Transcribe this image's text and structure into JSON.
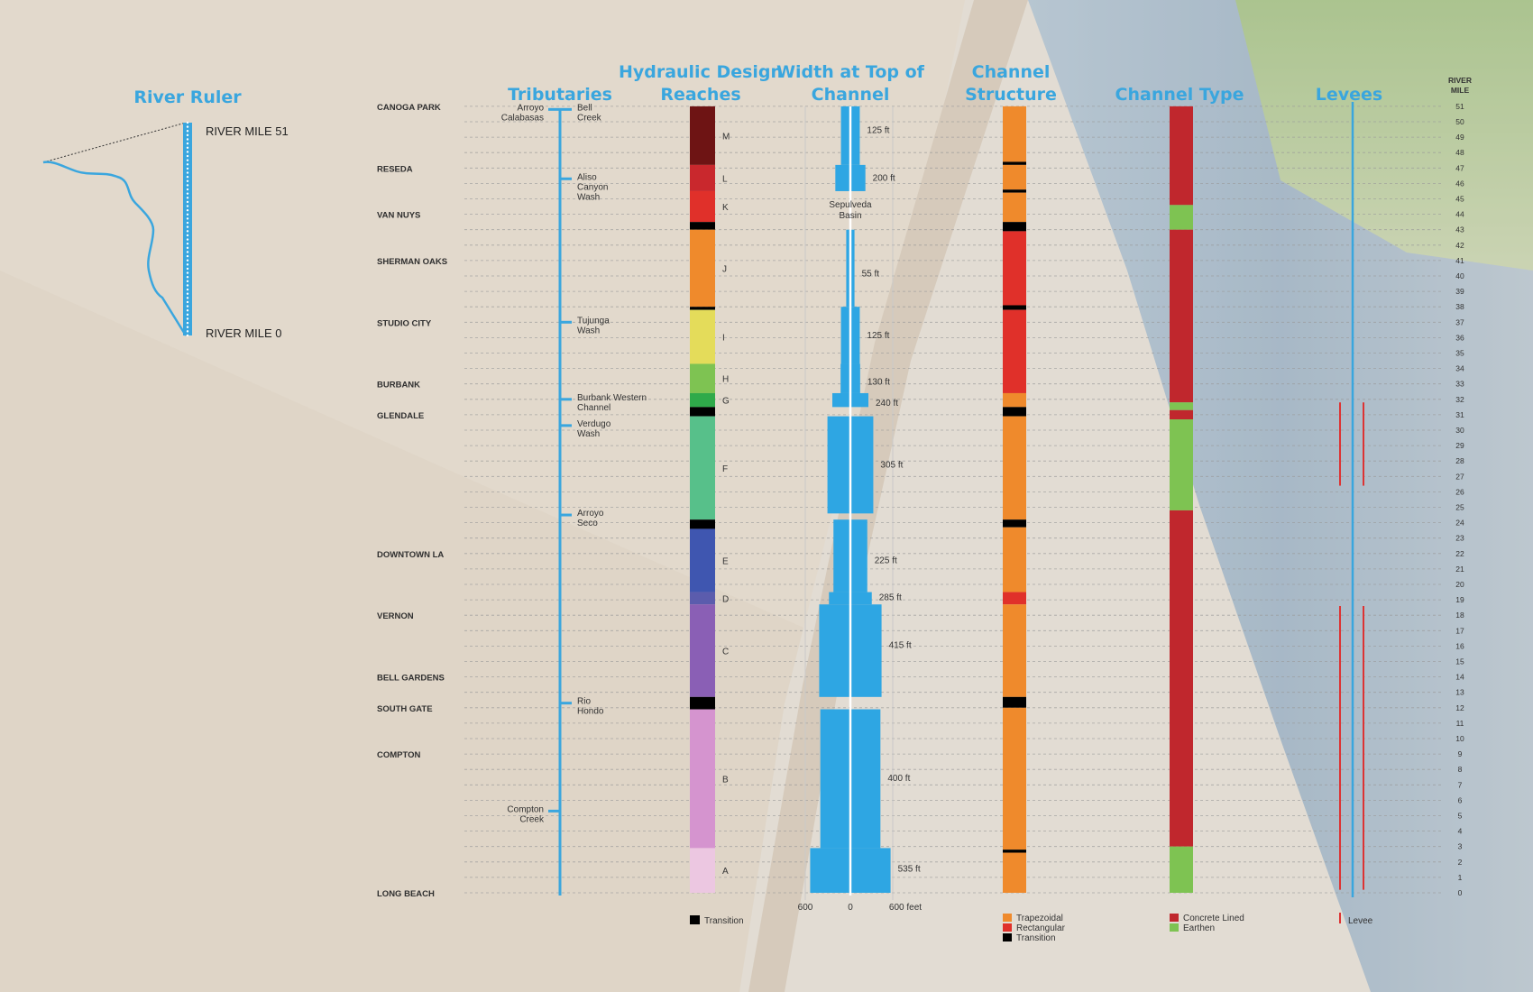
{
  "headers": {
    "river_ruler": "River Ruler",
    "tributaries": "Tributaries",
    "hydraulic_1": "Hydraulic Design",
    "hydraulic_2": "Reaches",
    "width_1": "Width at Top of",
    "width_2": "Channel",
    "structure_1": "Channel",
    "structure_2": "Structure",
    "type": "Channel Type",
    "levees": "Levees",
    "rivermile_1": "RIVER",
    "rivermile_2": "MILE"
  },
  "ruler": {
    "top_label": "RIVER MILE 51",
    "bottom_label": "RIVER MILE 0"
  },
  "cities": [
    {
      "name": "CANOGA PARK",
      "mile": 51
    },
    {
      "name": "RESEDA",
      "mile": 47
    },
    {
      "name": "VAN NUYS",
      "mile": 44
    },
    {
      "name": "SHERMAN OAKS",
      "mile": 41
    },
    {
      "name": "STUDIO CITY",
      "mile": 37
    },
    {
      "name": "BURBANK",
      "mile": 33
    },
    {
      "name": "GLENDALE",
      "mile": 31
    },
    {
      "name": "DOWNTOWN LA",
      "mile": 22
    },
    {
      "name": "VERNON",
      "mile": 18
    },
    {
      "name": "BELL GARDENS",
      "mile": 14
    },
    {
      "name": "SOUTH GATE",
      "mile": 12
    },
    {
      "name": "COMPTON",
      "mile": 9
    },
    {
      "name": "LONG BEACH",
      "mile": 0
    }
  ],
  "tributaries": [
    {
      "lines": [
        "Arroyo",
        "Calabasas"
      ],
      "side": "left",
      "mile": 50.8
    },
    {
      "lines": [
        "Bell",
        "Creek"
      ],
      "side": "right",
      "mile": 50.8
    },
    {
      "lines": [
        "Aliso",
        "Canyon",
        "Wash"
      ],
      "side": "right",
      "mile": 46.3
    },
    {
      "lines": [
        "Tujunga",
        "Wash"
      ],
      "side": "right",
      "mile": 37
    },
    {
      "lines": [
        "Burbank Western",
        "Channel"
      ],
      "side": "right",
      "mile": 32
    },
    {
      "lines": [
        "Verdugo",
        "Wash"
      ],
      "side": "right",
      "mile": 30.3
    },
    {
      "lines": [
        "Arroyo",
        "Seco"
      ],
      "side": "right",
      "mile": 24.5
    },
    {
      "lines": [
        "Rio",
        "Hondo"
      ],
      "side": "right",
      "mile": 12.3
    },
    {
      "lines": [
        "Compton",
        "Creek"
      ],
      "side": "left",
      "mile": 5.3
    }
  ],
  "hydraulic_reaches": [
    {
      "label": "M",
      "from": 51,
      "to": 47.2,
      "color": "#6e1414"
    },
    {
      "label": "L",
      "from": 47.2,
      "to": 45.5,
      "color": "#c9282d"
    },
    {
      "label": "K",
      "from": 45.5,
      "to": 43.5,
      "color": "#e0302a"
    },
    {
      "label": "",
      "from": 43.5,
      "to": 43.0,
      "color": "#000000"
    },
    {
      "label": "J",
      "from": 43.0,
      "to": 38.0,
      "color": "#ef8a2c"
    },
    {
      "label": "",
      "from": 38.0,
      "to": 37.8,
      "color": "#000000"
    },
    {
      "label": "I",
      "from": 37.8,
      "to": 34.3,
      "color": "#e4dc5a"
    },
    {
      "label": "H",
      "from": 34.3,
      "to": 32.4,
      "color": "#7ec352"
    },
    {
      "label": "G",
      "from": 32.4,
      "to": 31.5,
      "color": "#2faa4a"
    },
    {
      "label": "",
      "from": 31.5,
      "to": 30.9,
      "color": "#000000"
    },
    {
      "label": "F",
      "from": 30.9,
      "to": 24.2,
      "color": "#57c08a"
    },
    {
      "label": "",
      "from": 24.2,
      "to": 23.6,
      "color": "#000000"
    },
    {
      "label": "E",
      "from": 23.6,
      "to": 19.5,
      "color": "#3f56b0"
    },
    {
      "label": "D",
      "from": 19.5,
      "to": 18.7,
      "color": "#5b5cad"
    },
    {
      "label": "C",
      "from": 18.7,
      "to": 12.7,
      "color": "#8a5fb5"
    },
    {
      "label": "",
      "from": 12.7,
      "to": 11.9,
      "color": "#000000"
    },
    {
      "label": "B",
      "from": 11.9,
      "to": 2.9,
      "color": "#d594cf"
    },
    {
      "label": "A",
      "from": 2.9,
      "to": 0,
      "color": "#ecc7e1"
    }
  ],
  "hydraulic_legend": "Transition",
  "width_segments": [
    {
      "from": 51,
      "to": 47.2,
      "ft": 125,
      "label": "125 ft",
      "label_mile": 49.5
    },
    {
      "from": 47.2,
      "to": 45.5,
      "ft": 200,
      "label": "200 ft",
      "label_mile": 46.4
    },
    {
      "from": 43.0,
      "to": 38.0,
      "ft": 55,
      "label": "55 ft",
      "label_mile": 40.2
    },
    {
      "from": 38.0,
      "to": 34.3,
      "ft": 125,
      "label": "125 ft",
      "label_mile": 36.2
    },
    {
      "from": 34.3,
      "to": 32.4,
      "ft": 130,
      "label": "130 ft",
      "label_mile": 33.2
    },
    {
      "from": 32.4,
      "to": 31.5,
      "ft": 240,
      "label": "240 ft",
      "label_mile": 31.8
    },
    {
      "from": 30.9,
      "to": 24.6,
      "ft": 305,
      "label": "305 ft",
      "label_mile": 27.8
    },
    {
      "from": 24.2,
      "to": 19.5,
      "ft": 225,
      "label": "225 ft",
      "label_mile": 21.6
    },
    {
      "from": 19.5,
      "to": 18.7,
      "ft": 285,
      "label": "285 ft",
      "label_mile": 19.2
    },
    {
      "from": 18.7,
      "to": 12.7,
      "ft": 415,
      "label": "415 ft",
      "label_mile": 16.1
    },
    {
      "from": 11.9,
      "to": 2.9,
      "ft": 400,
      "label": "400 ft",
      "label_mile": 7.5
    },
    {
      "from": 2.9,
      "to": 0,
      "ft": 535,
      "label": "535 ft",
      "label_mile": 1.6
    }
  ],
  "sepulveda": [
    "Sepulveda",
    "Basin"
  ],
  "width_axis": [
    "600",
    "0",
    "600 feet"
  ],
  "structure": [
    {
      "from": 51,
      "to": 47.4,
      "color": "#ef8a2c"
    },
    {
      "from": 47.4,
      "to": 47.2,
      "color": "#000000"
    },
    {
      "from": 47.2,
      "to": 45.6,
      "color": "#ef8a2c"
    },
    {
      "from": 45.6,
      "to": 45.4,
      "color": "#000000"
    },
    {
      "from": 45.4,
      "to": 43.5,
      "color": "#ef8a2c"
    },
    {
      "from": 43.5,
      "to": 42.9,
      "color": "#000000"
    },
    {
      "from": 42.9,
      "to": 38.1,
      "color": "#e0302a"
    },
    {
      "from": 38.1,
      "to": 37.8,
      "color": "#000000"
    },
    {
      "from": 37.8,
      "to": 32.4,
      "color": "#e0302a"
    },
    {
      "from": 32.4,
      "to": 31.5,
      "color": "#ef8a2c"
    },
    {
      "from": 31.5,
      "to": 30.9,
      "color": "#000000"
    },
    {
      "from": 30.9,
      "to": 24.2,
      "color": "#ef8a2c"
    },
    {
      "from": 24.2,
      "to": 23.7,
      "color": "#000000"
    },
    {
      "from": 23.7,
      "to": 19.5,
      "color": "#ef8a2c"
    },
    {
      "from": 19.5,
      "to": 18.7,
      "color": "#e0302a"
    },
    {
      "from": 18.7,
      "to": 12.7,
      "color": "#ef8a2c"
    },
    {
      "from": 12.7,
      "to": 12.0,
      "color": "#000000"
    },
    {
      "from": 12.0,
      "to": 2.8,
      "color": "#ef8a2c"
    },
    {
      "from": 2.8,
      "to": 2.6,
      "color": "#000000"
    },
    {
      "from": 2.6,
      "to": 0,
      "color": "#ef8a2c"
    }
  ],
  "structure_legend": [
    {
      "label": "Trapezoidal",
      "color": "#ef8a2c"
    },
    {
      "label": "Rectangular",
      "color": "#e0302a"
    },
    {
      "label": "Transition",
      "color": "#000000"
    }
  ],
  "channel_type": [
    {
      "from": 51,
      "to": 44.6,
      "color": "#c0272d"
    },
    {
      "from": 44.6,
      "to": 43.0,
      "color": "#7ec352"
    },
    {
      "from": 43.0,
      "to": 31.8,
      "color": "#c0272d"
    },
    {
      "from": 31.8,
      "to": 31.3,
      "color": "#7ec352"
    },
    {
      "from": 31.3,
      "to": 30.7,
      "color": "#c0272d"
    },
    {
      "from": 30.7,
      "to": 24.8,
      "color": "#7ec352"
    },
    {
      "from": 24.8,
      "to": 3.0,
      "color": "#c0272d"
    },
    {
      "from": 3.0,
      "to": 0,
      "color": "#7ec352"
    }
  ],
  "type_legend": [
    {
      "label": "Concrete Lined",
      "color": "#c0272d"
    },
    {
      "label": "Earthen",
      "color": "#7ec352"
    }
  ],
  "levees": [
    {
      "from": 31.8,
      "to": 26.4,
      "side": "left"
    },
    {
      "from": 31.8,
      "to": 26.4,
      "side": "right"
    },
    {
      "from": 18.6,
      "to": 0.2,
      "side": "left"
    },
    {
      "from": 18.6,
      "to": 0.2,
      "side": "right"
    }
  ],
  "levee_legend": "Levee",
  "mile_numbers": [
    51,
    50,
    49,
    48,
    47,
    46,
    45,
    44,
    43,
    42,
    41,
    40,
    39,
    38,
    37,
    36,
    35,
    34,
    33,
    32,
    31,
    30,
    29,
    28,
    27,
    26,
    25,
    24,
    23,
    22,
    21,
    20,
    19,
    18,
    17,
    16,
    15,
    14,
    13,
    12,
    11,
    10,
    9,
    8,
    7,
    6,
    5,
    4,
    3,
    2,
    1,
    0
  ],
  "colors": {
    "accent": "#3aa6de",
    "dash": "#9a9a9a"
  }
}
